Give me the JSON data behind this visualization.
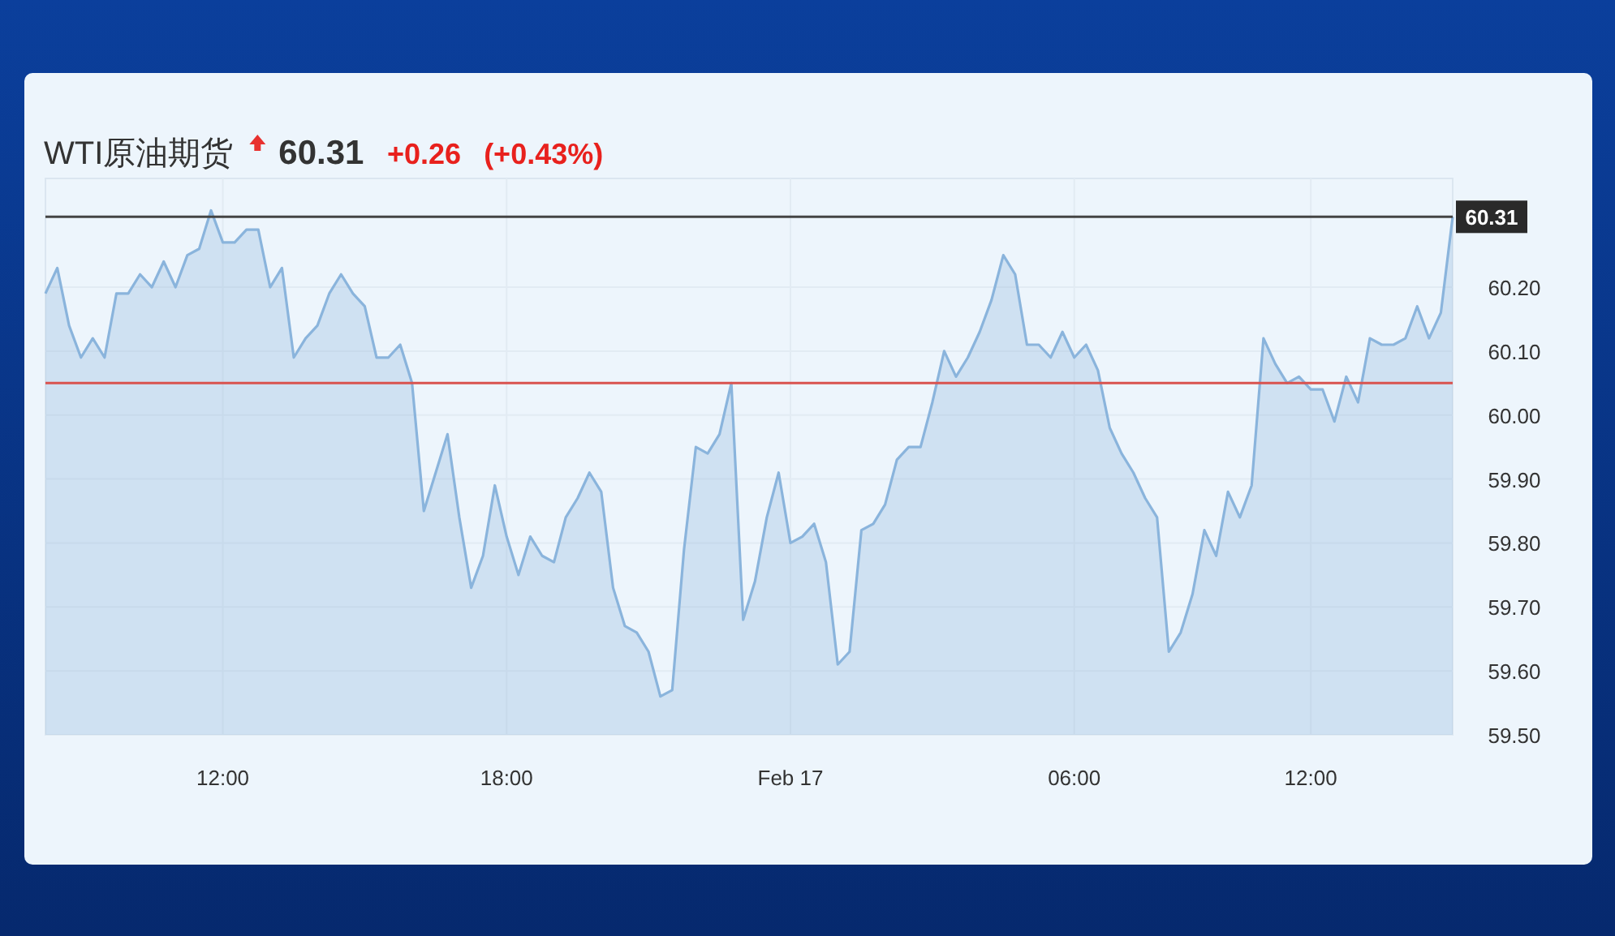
{
  "chart_data": {
    "type": "area",
    "title": "WTI原油期货",
    "annotations": [
      "60.31",
      "+0.26",
      "(+0.43%)"
    ],
    "categories": [
      null,
      null,
      null,
      null,
      null,
      null,
      null,
      null,
      null,
      null,
      null,
      null,
      null,
      null,
      null,
      "12:00",
      null,
      null,
      null,
      null,
      null,
      null,
      null,
      null,
      null,
      null,
      null,
      null,
      null,
      null,
      null,
      null,
      null,
      null,
      null,
      null,
      null,
      null,
      null,
      "18:00",
      null,
      null,
      null,
      null,
      null,
      null,
      null,
      null,
      null,
      null,
      null,
      null,
      null,
      null,
      null,
      null,
      null,
      null,
      null,
      null,
      null,
      null,
      null,
      "Feb 17",
      null,
      null,
      null,
      null,
      null,
      null,
      null,
      null,
      null,
      null,
      null,
      null,
      null,
      null,
      null,
      null,
      null,
      null,
      null,
      null,
      null,
      null,
      null,
      "06:00",
      null,
      null,
      null,
      null,
      null,
      null,
      null,
      null,
      null,
      null,
      null,
      null,
      null,
      null,
      null,
      null,
      null,
      null,
      null,
      "12:00",
      null,
      null,
      null,
      null,
      null,
      null,
      null,
      null,
      null,
      null,
      null,
      null
    ],
    "series": [
      {
        "color": "#8ab4dc",
        "values": [
          60.19,
          60.23,
          60.14,
          60.09,
          60.12,
          60.09,
          60.19,
          60.19,
          60.22,
          60.2,
          60.24,
          60.2,
          60.25,
          60.26,
          60.32,
          60.27,
          60.27,
          60.29,
          60.29,
          60.2,
          60.23,
          60.09,
          60.12,
          60.14,
          60.19,
          60.22,
          60.19,
          60.17,
          60.09,
          60.09,
          60.11,
          60.05,
          59.85,
          59.91,
          59.97,
          59.84,
          59.73,
          59.78,
          59.89,
          59.81,
          59.75,
          59.81,
          59.78,
          59.77,
          59.84,
          59.87,
          59.91,
          59.88,
          59.73,
          59.67,
          59.66,
          59.63,
          59.56,
          59.57,
          59.79,
          59.95,
          59.94,
          59.97,
          60.05,
          59.68,
          59.74,
          59.84,
          59.91,
          59.8,
          59.81,
          59.83,
          59.77,
          59.61,
          59.63,
          59.82,
          59.83,
          59.86,
          59.93,
          59.95,
          59.95,
          60.02,
          60.1,
          60.06,
          60.09,
          60.13,
          60.18,
          60.25,
          60.22,
          60.11,
          60.11,
          60.09,
          60.13,
          60.09,
          60.11,
          60.07,
          59.98,
          59.94,
          59.91,
          59.87,
          59.84,
          59.63,
          59.66,
          59.72,
          59.82,
          59.78,
          59.88,
          59.84,
          59.89,
          60.12,
          60.08,
          60.05,
          60.06,
          60.04,
          60.04,
          59.99,
          60.06,
          60.02,
          60.12,
          60.11,
          60.11,
          60.12,
          60.17,
          60.12,
          60.16,
          60.31
        ]
      }
    ],
    "ylim": [
      59.5,
      60.37
    ],
    "yticks": [
      {
        "value": 59.5,
        "label": "59.50"
      },
      {
        "value": 59.6,
        "label": "59.60"
      },
      {
        "value": 59.7,
        "label": "59.70"
      },
      {
        "value": 59.8,
        "label": "59.80"
      },
      {
        "value": 59.9,
        "label": "59.90"
      },
      {
        "value": 60.0,
        "label": "60.00"
      },
      {
        "value": 60.1,
        "label": "60.10"
      },
      {
        "value": 60.2,
        "label": "60.20"
      }
    ],
    "ref_lines": [
      {
        "axis": "y",
        "value": 60.31,
        "label": "60.31",
        "color": "#444444"
      },
      {
        "axis": "y",
        "value": 60.05,
        "color": "#d9534f"
      }
    ],
    "grid": true,
    "marker": "none",
    "line_style": "solid"
  }
}
